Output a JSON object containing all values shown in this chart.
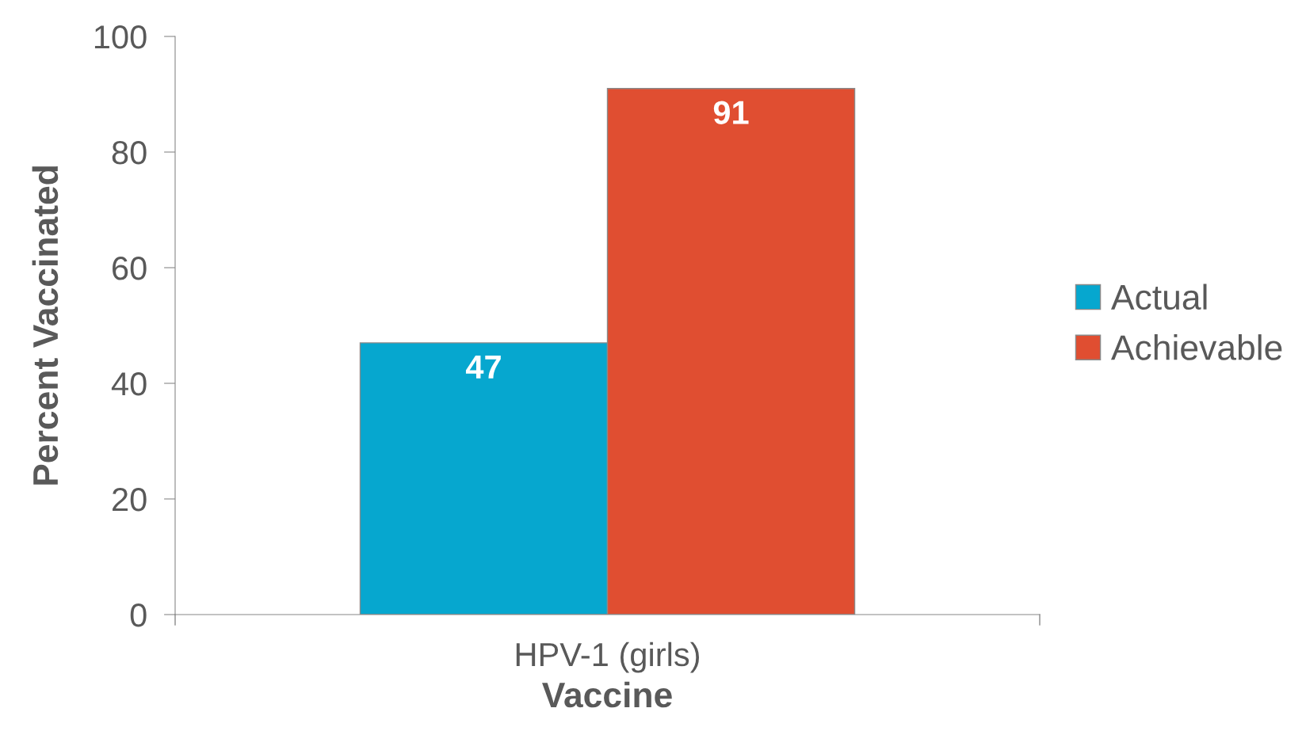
{
  "chart_data": {
    "type": "bar",
    "xlabel": "Vaccine",
    "ylabel": "Percent Vaccinated",
    "categories": [
      "HPV-1 (girls)"
    ],
    "series": [
      {
        "name": "Actual",
        "color": "#06a7cf",
        "values": [
          47
        ]
      },
      {
        "name": "Achievable",
        "color": "#e04e31",
        "values": [
          91
        ]
      }
    ],
    "ylim": [
      0,
      100
    ],
    "yticks": [
      0,
      20,
      40,
      60,
      80,
      100
    ],
    "grid": false,
    "legend": "right",
    "data_labels": true
  }
}
